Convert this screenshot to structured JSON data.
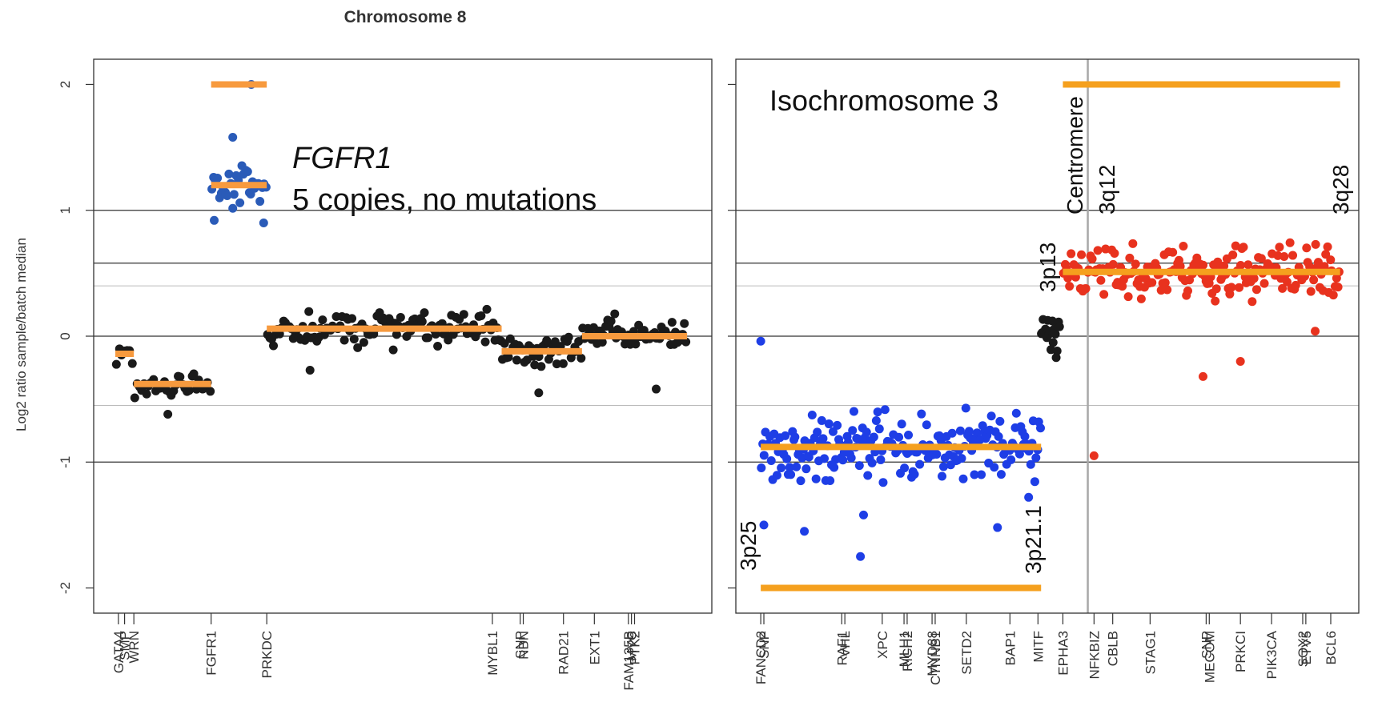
{
  "colors": {
    "orange": "#f5a01e",
    "orange_light": "#f79a3e",
    "blue_fgfr1": "#2a5bb8",
    "blue": "#1e3ee6",
    "red": "#e8321e",
    "black": "#1a1a1a",
    "gridline_dark": "#333333",
    "gridline_light": "#bbbbbb",
    "centromere_line": "#a8a8a8"
  },
  "chart_data": [
    {
      "type": "scatter",
      "title": "Chromosome 8",
      "ylabel": "Log2 ratio sample/batch median",
      "ylim": [
        -2.2,
        2.2
      ],
      "yticks": [
        2,
        1,
        0,
        -1,
        -2
      ],
      "reference_lines": [
        {
          "y": 1,
          "style": "dark"
        },
        {
          "y": 0.58,
          "style": "dark"
        },
        {
          "y": 0.4,
          "style": "light"
        },
        {
          "y": 0,
          "style": "dark"
        },
        {
          "y": -0.55,
          "style": "light"
        },
        {
          "y": -1,
          "style": "dark"
        }
      ],
      "gene_ticks": [
        {
          "label": "GATA4",
          "pos": 0.04
        },
        {
          "label": "SMP",
          "pos": 0.05
        },
        {
          "label": "WRN",
          "pos": 0.065
        },
        {
          "label": "FGFR1",
          "pos": 0.19
        },
        {
          "label": "PRKDC",
          "pos": 0.28
        },
        {
          "label": "MYBL1",
          "pos": 0.645
        },
        {
          "label": "SNP",
          "pos": 0.69
        },
        {
          "label": "NBN",
          "pos": 0.695
        },
        {
          "label": "RAD21",
          "pos": 0.76
        },
        {
          "label": "EXT1",
          "pos": 0.81
        },
        {
          "label": "FAM135B",
          "pos": 0.865
        },
        {
          "label": "MYC",
          "pos": 0.87
        },
        {
          "label": "PTK2",
          "pos": 0.875
        }
      ],
      "segments": [
        {
          "x": [
            0.035,
            0.065
          ],
          "y": -0.14,
          "color": "orange_light"
        },
        {
          "x": [
            0.065,
            0.19
          ],
          "y": -0.38,
          "color": "orange_light"
        },
        {
          "x": [
            0.19,
            0.28
          ],
          "y": 1.2,
          "color": "orange_light"
        },
        {
          "x": [
            0.19,
            0.28
          ],
          "y": 2.0,
          "color": "orange_light"
        },
        {
          "x": [
            0.28,
            0.66
          ],
          "y": 0.06,
          "color": "orange_light"
        },
        {
          "x": [
            0.66,
            0.79
          ],
          "y": -0.12,
          "color": "orange_light"
        },
        {
          "x": [
            0.79,
            0.96
          ],
          "y": 0.0,
          "color": "orange_light"
        }
      ],
      "clusters": [
        {
          "x": [
            0.035,
            0.065
          ],
          "n": 7,
          "mean": -0.12,
          "sd": 0.1,
          "color": "black",
          "seed": 11
        },
        {
          "x": [
            0.065,
            0.19
          ],
          "n": 34,
          "mean": -0.4,
          "sd": 0.07,
          "color": "black",
          "seed": 12
        },
        {
          "x": [
            0.19,
            0.28
          ],
          "n": 30,
          "mean": 1.2,
          "sd": 0.14,
          "color": "blue_fgfr1",
          "seed": 13
        },
        {
          "x": [
            0.28,
            0.66
          ],
          "n": 120,
          "mean": 0.06,
          "sd": 0.1,
          "color": "black",
          "seed": 14
        },
        {
          "x": [
            0.66,
            0.79
          ],
          "n": 40,
          "mean": -0.12,
          "sd": 0.09,
          "color": "black",
          "seed": 15
        },
        {
          "x": [
            0.79,
            0.96
          ],
          "n": 60,
          "mean": 0.03,
          "sd": 0.1,
          "color": "black",
          "seed": 16
        }
      ],
      "points": [
        {
          "x": 0.255,
          "y": 2.0,
          "color": "blue_fgfr1"
        },
        {
          "x": 0.225,
          "y": 1.58,
          "color": "blue_fgfr1"
        },
        {
          "x": 0.195,
          "y": 0.92,
          "color": "blue_fgfr1"
        },
        {
          "x": 0.275,
          "y": 0.9,
          "color": "blue_fgfr1"
        },
        {
          "x": 0.12,
          "y": -0.62,
          "color": "black"
        },
        {
          "x": 0.91,
          "y": -0.42,
          "color": "black"
        },
        {
          "x": 0.72,
          "y": -0.45,
          "color": "black"
        },
        {
          "x": 0.35,
          "y": -0.27,
          "color": "black"
        }
      ],
      "annotations": [
        {
          "text": "FGFR1",
          "italic": true
        },
        {
          "text": "5 copies, no mutations",
          "italic": false
        }
      ]
    },
    {
      "type": "scatter",
      "title": "",
      "ylim": [
        -2.2,
        2.2
      ],
      "yticks": [
        2,
        1,
        0,
        -1,
        -2
      ],
      "reference_lines": [
        {
          "y": 1,
          "style": "dark"
        },
        {
          "y": 0.58,
          "style": "dark"
        },
        {
          "y": 0.4,
          "style": "light"
        },
        {
          "y": 0,
          "style": "dark"
        },
        {
          "y": -0.55,
          "style": "light"
        },
        {
          "y": -1,
          "style": "dark"
        }
      ],
      "centromere_x": 0.565,
      "gene_ticks": [
        {
          "label": "FANCD2",
          "pos": 0.04
        },
        {
          "label": "SNP",
          "pos": 0.045
        },
        {
          "label": "RAF1",
          "pos": 0.17
        },
        {
          "label": "XPC",
          "pos": 0.235
        },
        {
          "label": "VHL",
          "pos": 0.175
        },
        {
          "label": "MLH1",
          "pos": 0.27
        },
        {
          "label": "RICH2",
          "pos": 0.275
        },
        {
          "label": "MYD88",
          "pos": 0.315
        },
        {
          "label": "CTNNB1",
          "pos": 0.32
        },
        {
          "label": "SETD2",
          "pos": 0.37
        },
        {
          "label": "BAP1",
          "pos": 0.44
        },
        {
          "label": "MITF",
          "pos": 0.485
        },
        {
          "label": "EPHA3",
          "pos": 0.525
        },
        {
          "label": "NFKBIZ",
          "pos": 0.575
        },
        {
          "label": "CBLB",
          "pos": 0.605
        },
        {
          "label": "STAG1",
          "pos": 0.665
        },
        {
          "label": "SNP",
          "pos": 0.755
        },
        {
          "label": "MECOM",
          "pos": 0.76
        },
        {
          "label": "PRKCI",
          "pos": 0.81
        },
        {
          "label": "PIK3CA",
          "pos": 0.86
        },
        {
          "label": "SOX2",
          "pos": 0.91
        },
        {
          "label": "ETV5",
          "pos": 0.915
        },
        {
          "label": "BCL6",
          "pos": 0.955
        }
      ],
      "segments": [
        {
          "x": [
            0.04,
            0.49
          ],
          "y": -0.88,
          "color": "orange"
        },
        {
          "x": [
            0.04,
            0.49
          ],
          "y": -2.0,
          "color": "orange"
        },
        {
          "x": [
            0.525,
            0.97
          ],
          "y": 0.51,
          "color": "orange"
        },
        {
          "x": [
            0.525,
            0.97
          ],
          "y": 2.0,
          "color": "orange"
        }
      ],
      "clusters": [
        {
          "x": [
            0.04,
            0.49
          ],
          "n": 200,
          "mean": -0.88,
          "sd": 0.19,
          "color": "blue",
          "seed": 21
        },
        {
          "x": [
            0.49,
            0.52
          ],
          "n": 24,
          "mean": 0.0,
          "sd": 0.11,
          "color": "black",
          "seed": 22
        },
        {
          "x": [
            0.525,
            0.97
          ],
          "n": 185,
          "mean": 0.51,
          "sd": 0.16,
          "color": "red",
          "seed": 23
        }
      ],
      "points": [
        {
          "x": 0.04,
          "y": -0.04,
          "color": "blue"
        },
        {
          "x": 0.045,
          "y": -1.5,
          "color": "blue"
        },
        {
          "x": 0.11,
          "y": -1.55,
          "color": "blue"
        },
        {
          "x": 0.2,
          "y": -1.75,
          "color": "blue"
        },
        {
          "x": 0.205,
          "y": -1.42,
          "color": "blue"
        },
        {
          "x": 0.42,
          "y": -1.52,
          "color": "blue"
        },
        {
          "x": 0.47,
          "y": -1.28,
          "color": "blue"
        },
        {
          "x": 0.575,
          "y": -0.95,
          "color": "red"
        },
        {
          "x": 0.75,
          "y": -0.32,
          "color": "red"
        },
        {
          "x": 0.81,
          "y": -0.2,
          "color": "red"
        },
        {
          "x": 0.93,
          "y": 0.04,
          "color": "red"
        }
      ],
      "annotations": [
        {
          "text": "Isochromosome 3"
        },
        {
          "text": "Centromere"
        },
        {
          "text": "3p25"
        },
        {
          "text": "3p21.1"
        },
        {
          "text": "3p13"
        },
        {
          "text": "3q12"
        },
        {
          "text": "3q28"
        }
      ]
    }
  ]
}
